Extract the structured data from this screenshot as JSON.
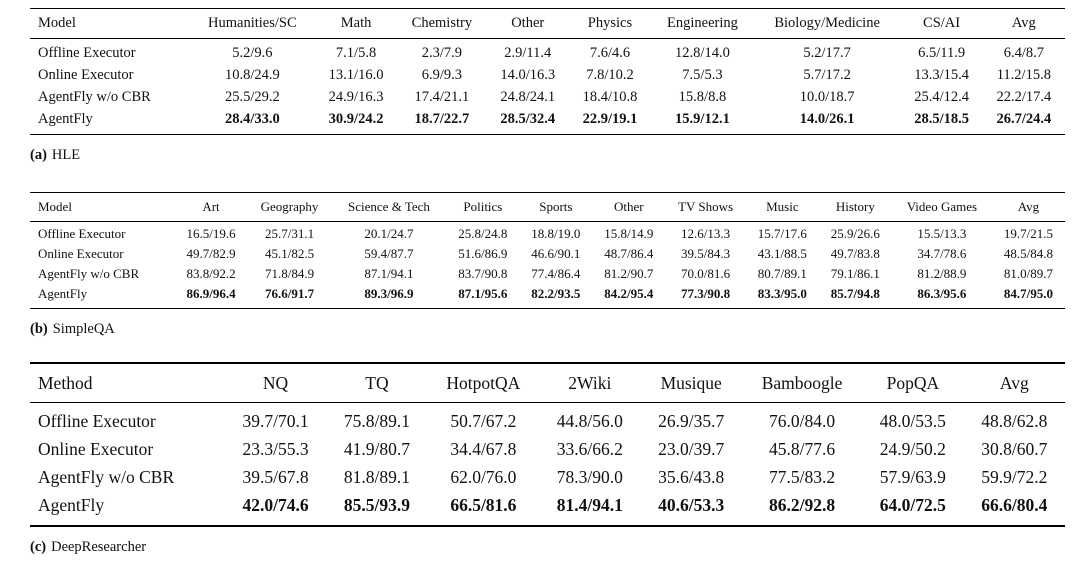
{
  "page": {
    "background_color": "#ffffff",
    "text_color": "#111111",
    "rule_color": "#000000"
  },
  "tables": [
    {
      "id": "hle",
      "caption": {
        "prefix": "(a)",
        "title": "HLE"
      },
      "headers": [
        "Model",
        "Humanities/SC",
        "Math",
        "Chemistry",
        "Other",
        "Physics",
        "Engineering",
        "Biology/Medicine",
        "CS/AI",
        "Avg"
      ],
      "rows": [
        {
          "label": "Offline Executor",
          "bold": false,
          "values": [
            "5.2/9.6",
            "7.1/5.8",
            "2.3/7.9",
            "2.9/11.4",
            "7.6/4.6",
            "12.8/14.0",
            "5.2/17.7",
            "6.5/11.9",
            "6.4/8.7"
          ]
        },
        {
          "label": "Online Executor",
          "bold": false,
          "values": [
            "10.8/24.9",
            "13.1/16.0",
            "6.9/9.3",
            "14.0/16.3",
            "7.8/10.2",
            "7.5/5.3",
            "5.7/17.2",
            "13.3/15.4",
            "11.2/15.8"
          ]
        },
        {
          "label": "AgentFly w/o CBR",
          "bold": false,
          "values": [
            "25.5/29.2",
            "24.9/16.3",
            "17.4/21.1",
            "24.8/24.1",
            "18.4/10.8",
            "15.8/8.8",
            "10.0/18.7",
            "25.4/12.4",
            "22.2/17.4"
          ]
        },
        {
          "label": "AgentFly",
          "bold": true,
          "values": [
            "28.4/33.0",
            "30.9/24.2",
            "18.7/22.7",
            "28.5/32.4",
            "22.9/19.1",
            "15.9/12.1",
            "14.0/26.1",
            "28.5/18.5",
            "26.7/24.4"
          ]
        }
      ]
    },
    {
      "id": "simpleqa",
      "caption": {
        "prefix": "(b)",
        "title": "SimpleQA"
      },
      "headers": [
        "Model",
        "Art",
        "Geography",
        "Science & Tech",
        "Politics",
        "Sports",
        "Other",
        "TV Shows",
        "Music",
        "History",
        "Video Games",
        "Avg"
      ],
      "rows": [
        {
          "label": "Offline Executor",
          "bold": false,
          "values": [
            "16.5/19.6",
            "25.7/31.1",
            "20.1/24.7",
            "25.8/24.8",
            "18.8/19.0",
            "15.8/14.9",
            "12.6/13.3",
            "15.7/17.6",
            "25.9/26.6",
            "15.5/13.3",
            "19.7/21.5"
          ]
        },
        {
          "label": "Online Executor",
          "bold": false,
          "values": [
            "49.7/82.9",
            "45.1/82.5",
            "59.4/87.7",
            "51.6/86.9",
            "46.6/90.1",
            "48.7/86.4",
            "39.5/84.3",
            "43.1/88.5",
            "49.7/83.8",
            "34.7/78.6",
            "48.5/84.8"
          ]
        },
        {
          "label": "AgentFly w/o CBR",
          "bold": false,
          "values": [
            "83.8/92.2",
            "71.8/84.9",
            "87.1/94.1",
            "83.7/90.8",
            "77.4/86.4",
            "81.2/90.7",
            "70.0/81.6",
            "80.7/89.1",
            "79.1/86.1",
            "81.2/88.9",
            "81.0/89.7"
          ]
        },
        {
          "label": "AgentFly",
          "bold": true,
          "values": [
            "86.9/96.4",
            "76.6/91.7",
            "89.3/96.9",
            "87.1/95.6",
            "82.2/93.5",
            "84.2/95.4",
            "77.3/90.8",
            "83.3/95.0",
            "85.7/94.8",
            "86.3/95.6",
            "84.7/95.0"
          ]
        }
      ]
    },
    {
      "id": "deepresearcher",
      "caption": {
        "prefix": "(c)",
        "title": "DeepResearcher"
      },
      "headers": [
        "Method",
        "NQ",
        "TQ",
        "HotpotQA",
        "2Wiki",
        "Musique",
        "Bamboogle",
        "PopQA",
        "Avg"
      ],
      "rows": [
        {
          "label": "Offline Executor",
          "bold": false,
          "values": [
            "39.7/70.1",
            "75.8/89.1",
            "50.7/67.2",
            "44.8/56.0",
            "26.9/35.7",
            "76.0/84.0",
            "48.0/53.5",
            "48.8/62.8"
          ]
        },
        {
          "label": "Online Executor",
          "bold": false,
          "values": [
            "23.3/55.3",
            "41.9/80.7",
            "34.4/67.8",
            "33.6/66.2",
            "23.0/39.7",
            "45.8/77.6",
            "24.9/50.2",
            "30.8/60.7"
          ]
        },
        {
          "label": "AgentFly w/o CBR",
          "bold": false,
          "values": [
            "39.5/67.8",
            "81.8/89.1",
            "62.0/76.0",
            "78.3/90.0",
            "35.6/43.8",
            "77.5/83.2",
            "57.9/63.9",
            "59.9/72.2"
          ]
        },
        {
          "label": "AgentFly",
          "bold": true,
          "values": [
            "42.0/74.6",
            "85.5/93.9",
            "66.5/81.6",
            "81.4/94.1",
            "40.6/53.3",
            "86.2/92.8",
            "64.0/72.5",
            "66.6/80.4"
          ]
        }
      ]
    }
  ]
}
